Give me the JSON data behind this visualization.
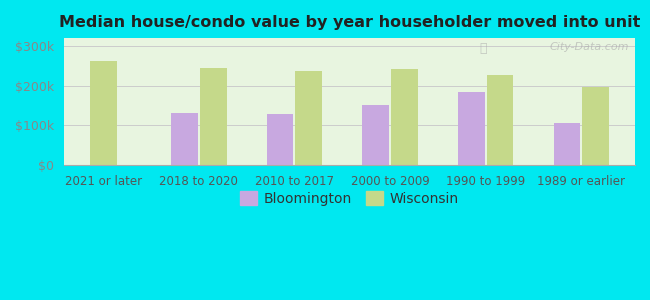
{
  "title": "Median house/condo value by year householder moved into unit",
  "categories": [
    "2021 or later",
    "2018 to 2020",
    "2010 to 2017",
    "2000 to 2009",
    "1990 to 1999",
    "1989 or earlier"
  ],
  "bloomington": [
    null,
    130000,
    128000,
    152000,
    183000,
    106000
  ],
  "wisconsin": [
    263000,
    245000,
    237000,
    243000,
    228000,
    196000
  ],
  "bloomington_color": "#c8a8e0",
  "wisconsin_color": "#c5d98a",
  "background_outer": "#00e8f0",
  "background_inner": "#e8f5e0",
  "ylim": [
    0,
    320000
  ],
  "yticks": [
    0,
    100000,
    200000,
    300000
  ],
  "ytick_labels": [
    "$0",
    "$100k",
    "$200k",
    "$300k"
  ],
  "bar_width": 0.28,
  "legend_bloomington": "Bloomington",
  "legend_wisconsin": "Wisconsin",
  "watermark": "City-Data.com"
}
